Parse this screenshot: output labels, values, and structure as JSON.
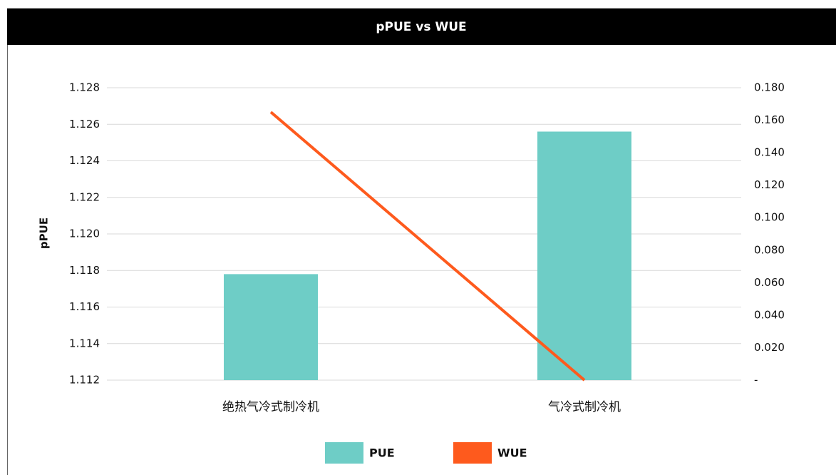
{
  "chart_data": {
    "type": "bar_line",
    "title": "pPUE vs WUE",
    "y_label": "pPUE",
    "categories": [
      "绝热气冷式制冷机",
      "气冷式制冷机"
    ],
    "series": [
      {
        "name": "PUE",
        "color": "#6ecdc6",
        "type": "bar",
        "values": [
          1.1178,
          1.1256
        ]
      },
      {
        "name": "WUE",
        "color": "#fe5a1d",
        "type": "line",
        "axis": "y2",
        "values": [
          0.165,
          0
        ]
      }
    ],
    "ylim": [
      1.112,
      1.128
    ],
    "yticks": [
      1.112,
      1.114,
      1.116,
      1.118,
      {
        "value": 1.12,
        "label": "1.120"
      },
      1.122,
      1.124,
      1.126,
      1.128
    ],
    "y2lim": [
      0,
      0.18
    ],
    "y2ticks": [
      {
        "value": 0,
        "label": "-"
      },
      {
        "value": 0.02,
        "label": "0.020"
      },
      {
        "value": 0.04,
        "label": "0.040"
      },
      {
        "value": 0.06,
        "label": "0.060"
      },
      {
        "value": 0.08,
        "label": "0.080"
      },
      {
        "value": 0.1,
        "label": "0.100"
      },
      {
        "value": 0.12,
        "label": "0.120"
      },
      {
        "value": 0.14,
        "label": "0.140"
      },
      {
        "value": 0.16,
        "label": "0.160"
      },
      {
        "value": 0.18,
        "label": "0.180"
      }
    ],
    "grid": true,
    "legend": "bottom"
  }
}
